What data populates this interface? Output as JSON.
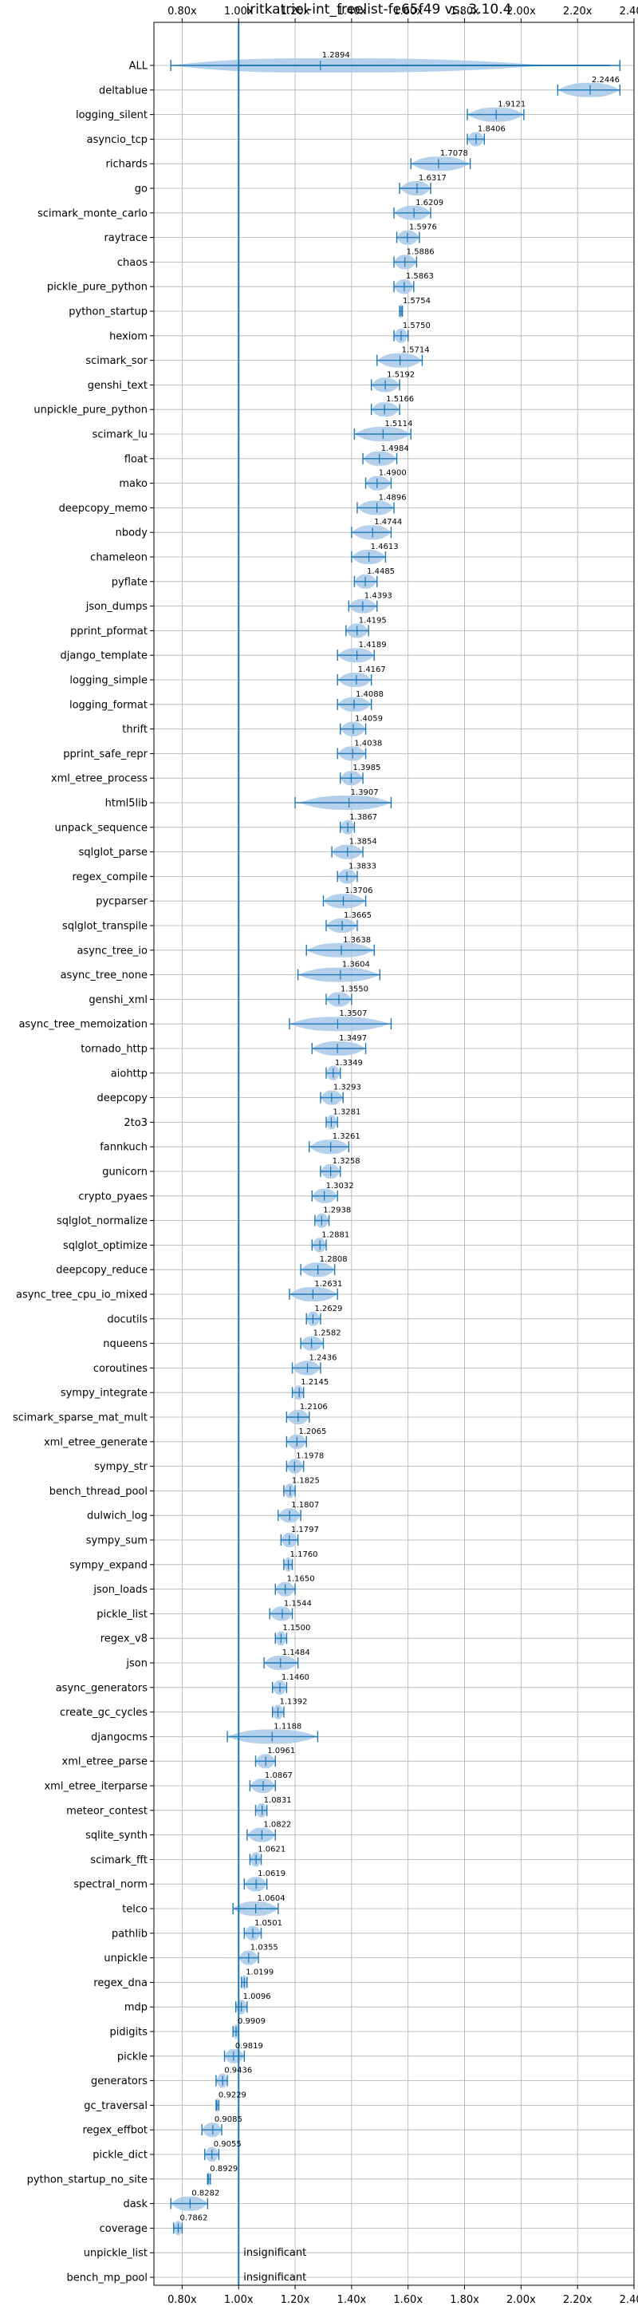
{
  "chart_data": {
    "type": "violin",
    "orientation": "horizontal",
    "title": "iritkatriel-int_freelist-fe65f49 vs. 3.10.4",
    "xlim": [
      0.7,
      2.4
    ],
    "x_ticks": [
      0.8,
      1.0,
      1.2,
      1.4,
      1.6,
      1.8,
      2.0,
      2.2,
      2.4
    ],
    "x_tick_labels": [
      "0.80x",
      "1.00x",
      "1.20x",
      "1.40x",
      "1.60x",
      "1.80x",
      "2.00x",
      "2.20x",
      "2.40x"
    ],
    "reference_line": 1.0,
    "grid": true,
    "colors": {
      "violin": "#a8c8e8",
      "line": "#1f77b4",
      "grid": "#b0b0b0"
    },
    "benchmarks": [
      {
        "name": "ALL",
        "value": 1.2894,
        "min": 0.76,
        "max": 2.35,
        "spread": 0.18
      },
      {
        "name": "deltablue",
        "value": 2.2446,
        "min": 2.13,
        "max": 2.35,
        "spread": 0.1
      },
      {
        "name": "logging_silent",
        "value": 1.9121,
        "min": 1.81,
        "max": 2.01,
        "spread": 0.09
      },
      {
        "name": "asyncio_tcp",
        "value": 1.8406,
        "min": 1.81,
        "max": 1.87,
        "spread": 0.03
      },
      {
        "name": "richards",
        "value": 1.7078,
        "min": 1.61,
        "max": 1.82,
        "spread": 0.09
      },
      {
        "name": "go",
        "value": 1.6317,
        "min": 1.57,
        "max": 1.68,
        "spread": 0.05
      },
      {
        "name": "scimark_monte_carlo",
        "value": 1.6209,
        "min": 1.55,
        "max": 1.68,
        "spread": 0.06
      },
      {
        "name": "raytrace",
        "value": 1.5976,
        "min": 1.56,
        "max": 1.64,
        "spread": 0.04
      },
      {
        "name": "chaos",
        "value": 1.5886,
        "min": 1.55,
        "max": 1.63,
        "spread": 0.04
      },
      {
        "name": "pickle_pure_python",
        "value": 1.5863,
        "min": 1.55,
        "max": 1.62,
        "spread": 0.04
      },
      {
        "name": "python_startup",
        "value": 1.5754,
        "min": 1.57,
        "max": 1.58,
        "spread": 0.01
      },
      {
        "name": "hexiom",
        "value": 1.575,
        "min": 1.55,
        "max": 1.6,
        "spread": 0.03
      },
      {
        "name": "scimark_sor",
        "value": 1.5714,
        "min": 1.49,
        "max": 1.65,
        "spread": 0.07
      },
      {
        "name": "genshi_text",
        "value": 1.5192,
        "min": 1.47,
        "max": 1.57,
        "spread": 0.05
      },
      {
        "name": "unpickle_pure_python",
        "value": 1.5166,
        "min": 1.47,
        "max": 1.57,
        "spread": 0.04
      },
      {
        "name": "scimark_lu",
        "value": 1.5114,
        "min": 1.41,
        "max": 1.61,
        "spread": 0.09
      },
      {
        "name": "float",
        "value": 1.4984,
        "min": 1.44,
        "max": 1.56,
        "spread": 0.05
      },
      {
        "name": "mako",
        "value": 1.49,
        "min": 1.45,
        "max": 1.54,
        "spread": 0.04
      },
      {
        "name": "deepcopy_memo",
        "value": 1.4896,
        "min": 1.42,
        "max": 1.55,
        "spread": 0.06
      },
      {
        "name": "nbody",
        "value": 1.4744,
        "min": 1.4,
        "max": 1.54,
        "spread": 0.06
      },
      {
        "name": "chameleon",
        "value": 1.4613,
        "min": 1.4,
        "max": 1.52,
        "spread": 0.05
      },
      {
        "name": "pyflate",
        "value": 1.4485,
        "min": 1.41,
        "max": 1.49,
        "spread": 0.04
      },
      {
        "name": "json_dumps",
        "value": 1.4393,
        "min": 1.39,
        "max": 1.49,
        "spread": 0.05
      },
      {
        "name": "pprint_pformat",
        "value": 1.4195,
        "min": 1.38,
        "max": 1.46,
        "spread": 0.04
      },
      {
        "name": "django_template",
        "value": 1.4189,
        "min": 1.35,
        "max": 1.48,
        "spread": 0.06
      },
      {
        "name": "logging_simple",
        "value": 1.4167,
        "min": 1.35,
        "max": 1.47,
        "spread": 0.05
      },
      {
        "name": "logging_format",
        "value": 1.4088,
        "min": 1.35,
        "max": 1.47,
        "spread": 0.05
      },
      {
        "name": "thrift",
        "value": 1.4059,
        "min": 1.36,
        "max": 1.45,
        "spread": 0.04
      },
      {
        "name": "pprint_safe_repr",
        "value": 1.4038,
        "min": 1.35,
        "max": 1.45,
        "spread": 0.05
      },
      {
        "name": "xml_etree_process",
        "value": 1.3985,
        "min": 1.36,
        "max": 1.44,
        "spread": 0.04
      },
      {
        "name": "html5lib",
        "value": 1.3907,
        "min": 1.2,
        "max": 1.54,
        "spread": 0.15
      },
      {
        "name": "unpack_sequence",
        "value": 1.3867,
        "min": 1.36,
        "max": 1.41,
        "spread": 0.02
      },
      {
        "name": "sqlglot_parse",
        "value": 1.3854,
        "min": 1.33,
        "max": 1.44,
        "spread": 0.05
      },
      {
        "name": "regex_compile",
        "value": 1.3833,
        "min": 1.35,
        "max": 1.42,
        "spread": 0.03
      },
      {
        "name": "pycparser",
        "value": 1.3706,
        "min": 1.3,
        "max": 1.45,
        "spread": 0.07
      },
      {
        "name": "sqlglot_transpile",
        "value": 1.3665,
        "min": 1.31,
        "max": 1.42,
        "spread": 0.05
      },
      {
        "name": "async_tree_io",
        "value": 1.3638,
        "min": 1.24,
        "max": 1.48,
        "spread": 0.1
      },
      {
        "name": "async_tree_none",
        "value": 1.3604,
        "min": 1.21,
        "max": 1.5,
        "spread": 0.12
      },
      {
        "name": "genshi_xml",
        "value": 1.355,
        "min": 1.31,
        "max": 1.4,
        "spread": 0.04
      },
      {
        "name": "async_tree_memoization",
        "value": 1.3507,
        "min": 1.18,
        "max": 1.54,
        "spread": 0.14
      },
      {
        "name": "tornado_http",
        "value": 1.3497,
        "min": 1.26,
        "max": 1.45,
        "spread": 0.08
      },
      {
        "name": "aiohttp",
        "value": 1.3349,
        "min": 1.31,
        "max": 1.36,
        "spread": 0.02
      },
      {
        "name": "deepcopy",
        "value": 1.3293,
        "min": 1.29,
        "max": 1.37,
        "spread": 0.04
      },
      {
        "name": "2to3",
        "value": 1.3281,
        "min": 1.31,
        "max": 1.35,
        "spread": 0.02
      },
      {
        "name": "fannkuch",
        "value": 1.3261,
        "min": 1.25,
        "max": 1.39,
        "spread": 0.06
      },
      {
        "name": "gunicorn",
        "value": 1.3258,
        "min": 1.29,
        "max": 1.36,
        "spread": 0.04
      },
      {
        "name": "crypto_pyaes",
        "value": 1.3032,
        "min": 1.26,
        "max": 1.35,
        "spread": 0.04
      },
      {
        "name": "sqlglot_normalize",
        "value": 1.2938,
        "min": 1.27,
        "max": 1.32,
        "spread": 0.03
      },
      {
        "name": "sqlglot_optimize",
        "value": 1.2881,
        "min": 1.26,
        "max": 1.31,
        "spread": 0.02
      },
      {
        "name": "deepcopy_reduce",
        "value": 1.2808,
        "min": 1.22,
        "max": 1.34,
        "spread": 0.05
      },
      {
        "name": "async_tree_cpu_io_mixed",
        "value": 1.2631,
        "min": 1.18,
        "max": 1.35,
        "spread": 0.07
      },
      {
        "name": "docutils",
        "value": 1.2629,
        "min": 1.24,
        "max": 1.29,
        "spread": 0.02
      },
      {
        "name": "nqueens",
        "value": 1.2582,
        "min": 1.22,
        "max": 1.3,
        "spread": 0.04
      },
      {
        "name": "coroutines",
        "value": 1.2436,
        "min": 1.19,
        "max": 1.29,
        "spread": 0.04
      },
      {
        "name": "sympy_integrate",
        "value": 1.2145,
        "min": 1.19,
        "max": 1.23,
        "spread": 0.02
      },
      {
        "name": "scimark_sparse_mat_mult",
        "value": 1.2106,
        "min": 1.17,
        "max": 1.25,
        "spread": 0.04
      },
      {
        "name": "xml_etree_generate",
        "value": 1.2065,
        "min": 1.17,
        "max": 1.24,
        "spread": 0.04
      },
      {
        "name": "sympy_str",
        "value": 1.1978,
        "min": 1.17,
        "max": 1.23,
        "spread": 0.03
      },
      {
        "name": "bench_thread_pool",
        "value": 1.1825,
        "min": 1.16,
        "max": 1.2,
        "spread": 0.02
      },
      {
        "name": "dulwich_log",
        "value": 1.1807,
        "min": 1.14,
        "max": 1.22,
        "spread": 0.04
      },
      {
        "name": "sympy_sum",
        "value": 1.1797,
        "min": 1.15,
        "max": 1.21,
        "spread": 0.03
      },
      {
        "name": "sympy_expand",
        "value": 1.176,
        "min": 1.16,
        "max": 1.19,
        "spread": 0.02
      },
      {
        "name": "json_loads",
        "value": 1.165,
        "min": 1.13,
        "max": 1.2,
        "spread": 0.03
      },
      {
        "name": "pickle_list",
        "value": 1.1544,
        "min": 1.11,
        "max": 1.19,
        "spread": 0.04
      },
      {
        "name": "regex_v8",
        "value": 1.15,
        "min": 1.13,
        "max": 1.17,
        "spread": 0.02
      },
      {
        "name": "json",
        "value": 1.1484,
        "min": 1.09,
        "max": 1.21,
        "spread": 0.05
      },
      {
        "name": "async_generators",
        "value": 1.146,
        "min": 1.12,
        "max": 1.17,
        "spread": 0.03
      },
      {
        "name": "create_gc_cycles",
        "value": 1.1392,
        "min": 1.12,
        "max": 1.16,
        "spread": 0.02
      },
      {
        "name": "djangocms",
        "value": 1.1188,
        "min": 0.96,
        "max": 1.28,
        "spread": 0.13
      },
      {
        "name": "xml_etree_parse",
        "value": 1.0961,
        "min": 1.06,
        "max": 1.13,
        "spread": 0.03
      },
      {
        "name": "xml_etree_iterparse",
        "value": 1.0867,
        "min": 1.04,
        "max": 1.13,
        "spread": 0.04
      },
      {
        "name": "meteor_contest",
        "value": 1.0831,
        "min": 1.06,
        "max": 1.1,
        "spread": 0.02
      },
      {
        "name": "sqlite_synth",
        "value": 1.0822,
        "min": 1.03,
        "max": 1.13,
        "spread": 0.04
      },
      {
        "name": "scimark_fft",
        "value": 1.0621,
        "min": 1.04,
        "max": 1.08,
        "spread": 0.02
      },
      {
        "name": "spectral_norm",
        "value": 1.0619,
        "min": 1.02,
        "max": 1.1,
        "spread": 0.04
      },
      {
        "name": "telco",
        "value": 1.0604,
        "min": 0.98,
        "max": 1.14,
        "spread": 0.07
      },
      {
        "name": "pathlib",
        "value": 1.0501,
        "min": 1.02,
        "max": 1.08,
        "spread": 0.03
      },
      {
        "name": "unpickle",
        "value": 1.0355,
        "min": 1.0,
        "max": 1.07,
        "spread": 0.03
      },
      {
        "name": "regex_dna",
        "value": 1.0199,
        "min": 1.01,
        "max": 1.03,
        "spread": 0.01
      },
      {
        "name": "mdp",
        "value": 1.0096,
        "min": 0.99,
        "max": 1.03,
        "spread": 0.02
      },
      {
        "name": "pidigits",
        "value": 0.9909,
        "min": 0.98,
        "max": 1.0,
        "spread": 0.01
      },
      {
        "name": "pickle",
        "value": 0.9819,
        "min": 0.95,
        "max": 1.02,
        "spread": 0.03
      },
      {
        "name": "generators",
        "value": 0.9436,
        "min": 0.92,
        "max": 0.96,
        "spread": 0.02
      },
      {
        "name": "gc_traversal",
        "value": 0.9229,
        "min": 0.92,
        "max": 0.93,
        "spread": 0.01
      },
      {
        "name": "regex_effbot",
        "value": 0.9085,
        "min": 0.87,
        "max": 0.94,
        "spread": 0.03
      },
      {
        "name": "pickle_dict",
        "value": 0.9055,
        "min": 0.88,
        "max": 0.93,
        "spread": 0.02
      },
      {
        "name": "python_startup_no_site",
        "value": 0.8929,
        "min": 0.89,
        "max": 0.9,
        "spread": 0.005
      },
      {
        "name": "dask",
        "value": 0.8282,
        "min": 0.76,
        "max": 0.89,
        "spread": 0.05
      },
      {
        "name": "coverage",
        "value": 0.7862,
        "min": 0.77,
        "max": 0.8,
        "spread": 0.02
      },
      {
        "name": "unpickle_list",
        "value": null,
        "note": "insignificant"
      },
      {
        "name": "bench_mp_pool",
        "value": null,
        "note": "insignificant"
      }
    ]
  }
}
